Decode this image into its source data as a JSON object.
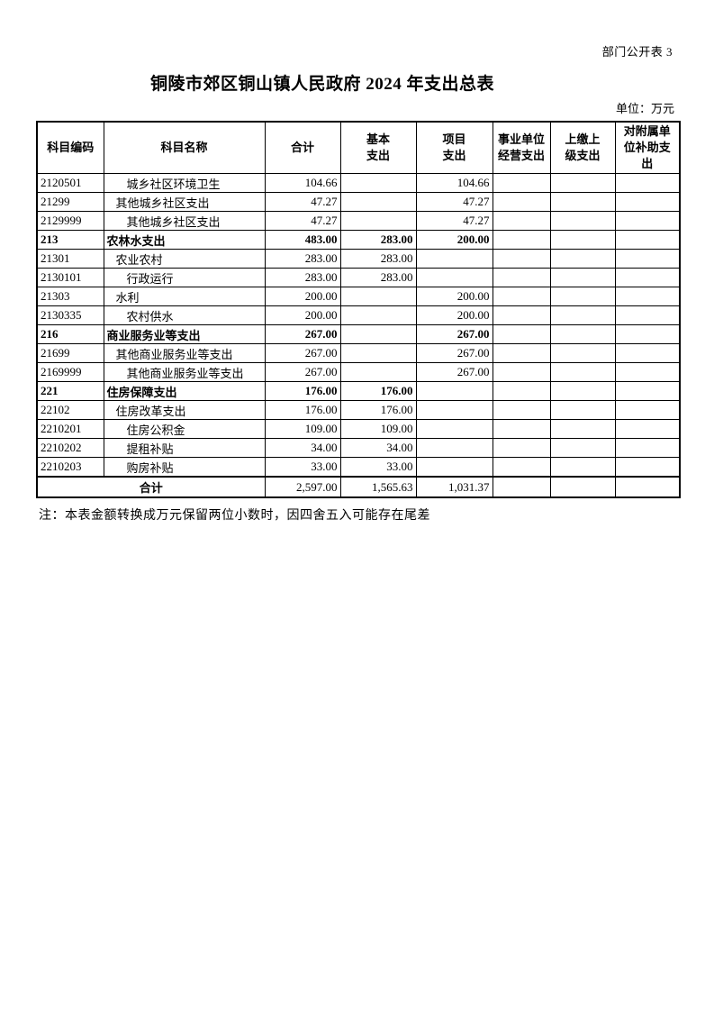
{
  "page": {
    "corner_label": "部门公开表 3",
    "title": "铜陵市郊区铜山镇人民政府 2024 年支出总表",
    "unit_label": "单位：万元",
    "note": "注：本表金额转换成万元保留两位小数时，因四舍五入可能存在尾差"
  },
  "table": {
    "headers": [
      "科目编码",
      "科目名称",
      "合计",
      "基本\n支出",
      "项目\n支出",
      "事业单位\n经营支出",
      "上缴上\n级支出",
      "对附属单\n位补助支\n出"
    ],
    "rows": [
      {
        "code": "2120501",
        "name": "城乡社区环境卫生",
        "indent": 2,
        "bold": false,
        "values": [
          "104.66",
          "",
          "104.66",
          "",
          "",
          ""
        ]
      },
      {
        "code": "21299",
        "name": "其他城乡社区支出",
        "indent": 1,
        "bold": false,
        "values": [
          "47.27",
          "",
          "47.27",
          "",
          "",
          ""
        ]
      },
      {
        "code": "2129999",
        "name": "其他城乡社区支出",
        "indent": 2,
        "bold": false,
        "values": [
          "47.27",
          "",
          "47.27",
          "",
          "",
          ""
        ]
      },
      {
        "code": "213",
        "name": "农林水支出",
        "indent": 0,
        "bold": true,
        "values": [
          "483.00",
          "283.00",
          "200.00",
          "",
          "",
          ""
        ]
      },
      {
        "code": "21301",
        "name": "农业农村",
        "indent": 1,
        "bold": false,
        "values": [
          "283.00",
          "283.00",
          "",
          "",
          "",
          ""
        ]
      },
      {
        "code": "2130101",
        "name": "行政运行",
        "indent": 2,
        "bold": false,
        "values": [
          "283.00",
          "283.00",
          "",
          "",
          "",
          ""
        ]
      },
      {
        "code": "21303",
        "name": "水利",
        "indent": 1,
        "bold": false,
        "values": [
          "200.00",
          "",
          "200.00",
          "",
          "",
          ""
        ]
      },
      {
        "code": "2130335",
        "name": "农村供水",
        "indent": 2,
        "bold": false,
        "values": [
          "200.00",
          "",
          "200.00",
          "",
          "",
          ""
        ]
      },
      {
        "code": "216",
        "name": "商业服务业等支出",
        "indent": 0,
        "bold": true,
        "values": [
          "267.00",
          "",
          "267.00",
          "",
          "",
          ""
        ]
      },
      {
        "code": "21699",
        "name": "其他商业服务业等支出",
        "indent": 1,
        "bold": false,
        "values": [
          "267.00",
          "",
          "267.00",
          "",
          "",
          ""
        ]
      },
      {
        "code": "2169999",
        "name": "其他商业服务业等支出",
        "indent": 2,
        "bold": false,
        "values": [
          "267.00",
          "",
          "267.00",
          "",
          "",
          ""
        ]
      },
      {
        "code": "221",
        "name": "住房保障支出",
        "indent": 0,
        "bold": true,
        "values": [
          "176.00",
          "176.00",
          "",
          "",
          "",
          ""
        ]
      },
      {
        "code": "22102",
        "name": "住房改革支出",
        "indent": 1,
        "bold": false,
        "values": [
          "176.00",
          "176.00",
          "",
          "",
          "",
          ""
        ]
      },
      {
        "code": "2210201",
        "name": "住房公积金",
        "indent": 2,
        "bold": false,
        "values": [
          "109.00",
          "109.00",
          "",
          "",
          "",
          ""
        ]
      },
      {
        "code": "2210202",
        "name": "提租补贴",
        "indent": 2,
        "bold": false,
        "values": [
          "34.00",
          "34.00",
          "",
          "",
          "",
          ""
        ]
      },
      {
        "code": "2210203",
        "name": "购房补贴",
        "indent": 2,
        "bold": false,
        "values": [
          "33.00",
          "33.00",
          "",
          "",
          "",
          ""
        ]
      }
    ],
    "total_row": {
      "label": "合计",
      "values": [
        "2,597.00",
        "1,565.63",
        "1,031.37",
        "",
        "",
        ""
      ]
    }
  }
}
